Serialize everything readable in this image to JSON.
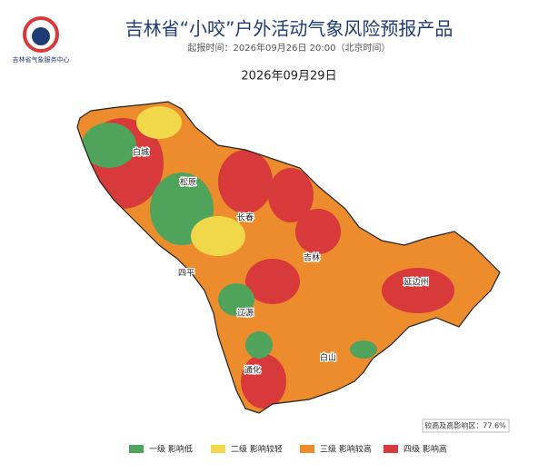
{
  "header": {
    "logo_text": "吉林省气象服务中心",
    "title": "吉林省“小咬”户外活动气象风险预报产品",
    "issue_time": "起报时间：2026年09月26日 20:00（北京时间）",
    "forecast_date": "2026年09月29日"
  },
  "map": {
    "cities": [
      "白城",
      "松原",
      "长春",
      "吉林",
      "四平",
      "辽源",
      "延边州",
      "白山",
      "通化"
    ],
    "stat": "较高及高影响区：77.6%"
  },
  "legend": {
    "items": [
      {
        "label": "一级 影响低",
        "color": "#4fa35a"
      },
      {
        "label": "二级 影响较轻",
        "color": "#f0d84a"
      },
      {
        "label": "三级 影响较高",
        "color": "#ec8c2c"
      },
      {
        "label": "四级 影响高",
        "color": "#d8393a"
      }
    ]
  }
}
